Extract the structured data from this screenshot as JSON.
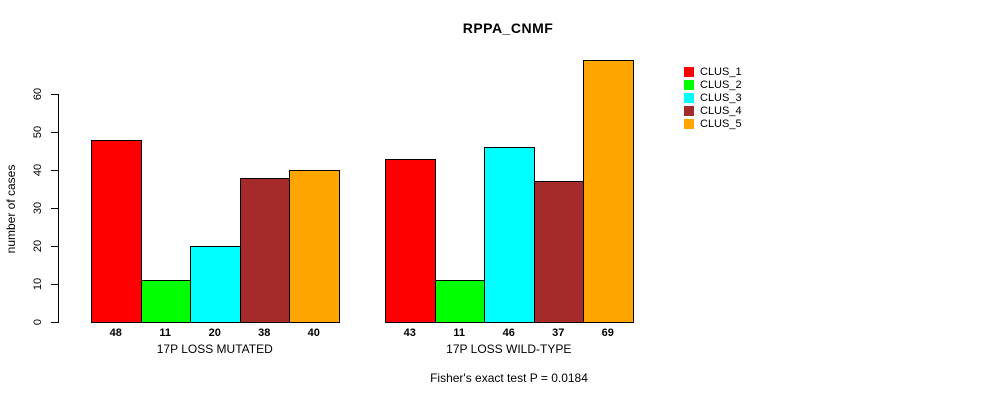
{
  "title": "RPPA_CNMF",
  "chart_data": {
    "type": "bar",
    "title": "RPPA_CNMF",
    "xlabel": "",
    "ylabel": "number of cases",
    "ylim": [
      0,
      60
    ],
    "yticks": [
      0,
      10,
      20,
      30,
      40,
      50,
      60
    ],
    "grid": false,
    "legend_position": "top-right",
    "bar_border_color": "#000000",
    "series": [
      {
        "name": "CLUS_1",
        "color": "#FF0000"
      },
      {
        "name": "CLUS_2",
        "color": "#00FF00"
      },
      {
        "name": "CLUS_3",
        "color": "#00FFFF"
      },
      {
        "name": "CLUS_4",
        "color": "#A52A2A"
      },
      {
        "name": "CLUS_5",
        "color": "#FFA500"
      }
    ],
    "groups": [
      {
        "label": "17P LOSS MUTATED",
        "values": [
          48,
          11,
          20,
          38,
          40
        ]
      },
      {
        "label": "17P LOSS WILD-TYPE",
        "values": [
          43,
          11,
          46,
          37,
          69
        ]
      }
    ],
    "annotation": "Fisher's exact test P = 0.0184"
  }
}
